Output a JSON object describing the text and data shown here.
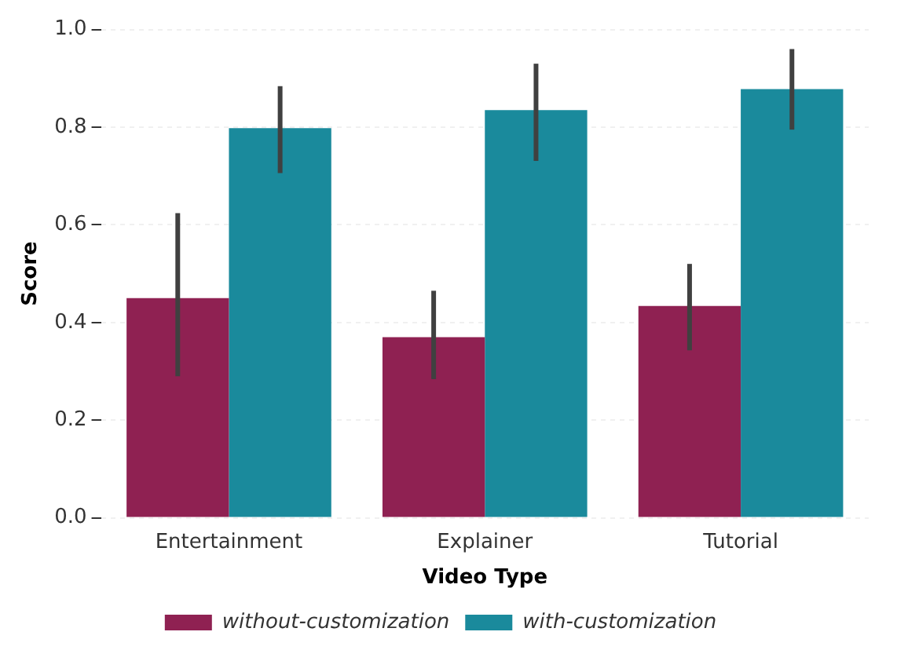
{
  "chart_data": {
    "type": "bar",
    "xlabel": "Video Type",
    "ylabel": "Score",
    "categories": [
      "Entertainment",
      "Explainer",
      "Tutorial"
    ],
    "series": [
      {
        "name": "without-customization",
        "color": "#8f2152",
        "values": [
          0.45,
          0.37,
          0.434
        ],
        "errors": [
          [
            0.29,
            0.624
          ],
          [
            0.284,
            0.465
          ],
          [
            0.343,
            0.52
          ]
        ]
      },
      {
        "name": "with-customization",
        "color": "#1a8a9c",
        "values": [
          0.798,
          0.835,
          0.878
        ],
        "errors": [
          [
            0.706,
            0.884
          ],
          [
            0.731,
            0.93
          ],
          [
            0.795,
            0.96
          ]
        ]
      }
    ],
    "ylim": [
      0,
      1
    ],
    "yticks": [
      {
        "value": 0,
        "label": "0.0"
      },
      {
        "value": 0.2,
        "label": "0.2"
      },
      {
        "value": 0.4,
        "label": "0.4"
      },
      {
        "value": 0.6,
        "label": "0.6"
      },
      {
        "value": 0.8,
        "label": "0.8"
      },
      {
        "value": 1,
        "label": "1.0"
      }
    ],
    "grid": "y",
    "legend": "bottom"
  }
}
